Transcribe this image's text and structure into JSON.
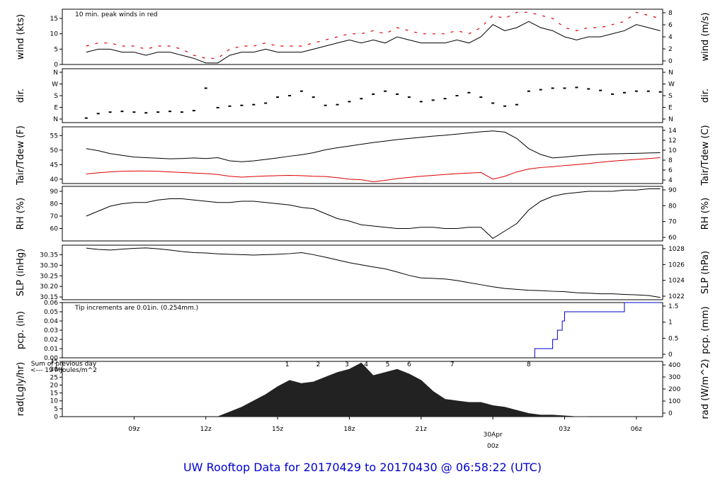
{
  "footer_title": "UW Rooftop Data for 20170429  to  20170430 @ 06:58:22  (UTC)",
  "colors": {
    "black": "#000000",
    "red": "#dd0000",
    "blue": "#0000cc",
    "purple": "#9900cc",
    "daylabel": "#dd0000",
    "fill": "#222222"
  },
  "chart_data": [
    {
      "id": "wind",
      "type": "line",
      "ylabel_left": "wind (kts)",
      "ylabel_right": "wind (m/s)",
      "annotation": "10 min. peak winds in red",
      "left_ticks": [
        0,
        5,
        10,
        15
      ],
      "right_ticks": [
        0,
        2,
        4,
        6,
        8
      ],
      "ylim": [
        0,
        18
      ],
      "series": [
        {
          "color": "#000000",
          "x": [
            7.0,
            7.5,
            8.0,
            8.5,
            9.0,
            9.5,
            10.0,
            10.5,
            11.0,
            11.5,
            12.0,
            12.5,
            13.0,
            13.5,
            14.0,
            14.5,
            15.0,
            15.5,
            16.0,
            16.5,
            17.0,
            17.5,
            18.0,
            18.5,
            19.0,
            19.5,
            20.0,
            20.5,
            21.0,
            21.5,
            22.0,
            22.5,
            23.0,
            23.5,
            24.0,
            24.5,
            25.0,
            25.5,
            26.0,
            26.5,
            27.0,
            27.5,
            28.0,
            28.5,
            29.0,
            29.5,
            30.0,
            30.5,
            31.0
          ],
          "y": [
            4,
            5,
            5,
            4,
            4,
            3,
            4,
            4,
            3,
            2,
            0.5,
            0.5,
            3,
            4,
            4,
            5,
            4,
            4,
            4,
            5,
            6,
            7,
            8,
            7,
            8,
            7,
            9,
            8,
            7,
            7,
            7,
            8,
            7,
            9,
            13,
            11,
            12,
            14,
            12,
            11,
            9,
            8,
            9,
            9,
            10,
            11,
            13,
            12,
            11
          ]
        },
        {
          "color": "#dd0000",
          "style": "dash",
          "x": [
            7.0,
            7.5,
            8.0,
            8.5,
            9.0,
            9.5,
            10.0,
            10.5,
            11.0,
            11.5,
            12.0,
            12.5,
            13.0,
            13.5,
            14.0,
            14.5,
            15.0,
            15.5,
            16.0,
            16.5,
            17.0,
            17.5,
            18.0,
            18.5,
            19.0,
            19.5,
            20.0,
            20.5,
            21.0,
            21.5,
            22.0,
            22.5,
            23.0,
            23.5,
            24.0,
            24.5,
            25.0,
            25.5,
            26.0,
            26.5,
            27.0,
            27.5,
            28.0,
            28.5,
            29.0,
            29.5,
            30.0,
            30.5,
            31.0
          ],
          "y": [
            6,
            7,
            7,
            6,
            6,
            5,
            6,
            6,
            5,
            3,
            2,
            2,
            5,
            6,
            6,
            7,
            6,
            6,
            6,
            7,
            8,
            9,
            10,
            10,
            11,
            10,
            12,
            11,
            10,
            10,
            10,
            11,
            10,
            12,
            16,
            15,
            17,
            17,
            16,
            15,
            12,
            11,
            12,
            12,
            13,
            14,
            17,
            16,
            15
          ]
        }
      ]
    },
    {
      "id": "dir",
      "type": "scatter",
      "ylabel_left": "dir.",
      "ylabel_right": "dir.",
      "left_ticks": [
        "N",
        "E",
        "S",
        "W",
        "N"
      ],
      "right_ticks": [
        "N",
        "E",
        "S",
        "W",
        "N"
      ],
      "ylim": [
        0,
        360
      ],
      "series": [
        {
          "color": "#000000",
          "x": [
            7.0,
            7.5,
            8.0,
            8.5,
            9.0,
            9.5,
            10.0,
            10.5,
            11.0,
            11.5,
            12.0,
            12.5,
            13.0,
            13.5,
            14.0,
            14.5,
            15.0,
            15.5,
            16.0,
            16.5,
            17.0,
            17.5,
            18.0,
            18.5,
            19.0,
            19.5,
            20.0,
            20.5,
            21.0,
            21.5,
            22.0,
            22.5,
            23.0,
            23.5,
            24.0,
            24.5,
            25.0,
            25.5,
            26.0,
            26.5,
            27.0,
            27.5,
            28.0,
            28.5,
            29.0,
            29.5,
            30.0,
            30.5,
            31.0
          ],
          "y": [
            30,
            60,
            70,
            75,
            70,
            65,
            70,
            75,
            70,
            80,
            230,
            100,
            110,
            115,
            120,
            130,
            170,
            180,
            210,
            170,
            115,
            120,
            140,
            160,
            190,
            210,
            190,
            170,
            140,
            150,
            160,
            180,
            200,
            170,
            130,
            110,
            120,
            210,
            220,
            230,
            230,
            235,
            225,
            215,
            190,
            200,
            210,
            210,
            205
          ]
        }
      ]
    },
    {
      "id": "temp",
      "type": "line",
      "ylabel_left": "Tair/Tdew (F)",
      "ylabel_right": "Tair/Tdew (C)",
      "left_ticks": [
        40,
        45,
        50,
        55
      ],
      "right_ticks": [
        4,
        6,
        8,
        10,
        12,
        14
      ],
      "ylim": [
        38.5,
        58
      ],
      "series": [
        {
          "color": "#000000",
          "x": [
            7.0,
            7.5,
            8.0,
            8.5,
            9.0,
            9.5,
            10.0,
            10.5,
            11.0,
            11.5,
            12.0,
            12.5,
            13.0,
            13.5,
            14.0,
            14.5,
            15.0,
            15.5,
            16.0,
            16.5,
            17.0,
            17.5,
            18.0,
            18.5,
            19.0,
            19.5,
            20.0,
            20.5,
            21.0,
            21.5,
            22.0,
            22.5,
            23.0,
            23.5,
            24.0,
            24.5,
            25.0,
            25.5,
            26.0,
            26.5,
            27.0,
            27.5,
            28.0,
            28.5,
            29.0,
            29.5,
            30.0,
            30.5,
            31.0
          ],
          "y": [
            50.5,
            49.8,
            48.8,
            48.2,
            47.6,
            47.4,
            47.2,
            47.0,
            47.1,
            47.3,
            47.1,
            47.4,
            46.3,
            46.0,
            46.3,
            46.8,
            47.3,
            47.9,
            48.4,
            49.1,
            50.1,
            50.8,
            51.4,
            52.0,
            52.6,
            53.1,
            53.6,
            54.0,
            54.4,
            54.8,
            55.1,
            55.5,
            55.9,
            56.3,
            56.6,
            56.2,
            54.0,
            50.5,
            48.5,
            47.3,
            47.6,
            48.0,
            48.3,
            48.6,
            48.7,
            48.8,
            48.9,
            49.0,
            49.1
          ]
        },
        {
          "color": "#dd0000",
          "x": [
            7.0,
            7.5,
            8.0,
            8.5,
            9.0,
            9.5,
            10.0,
            10.5,
            11.0,
            11.5,
            12.0,
            12.5,
            13.0,
            13.5,
            14.0,
            14.5,
            15.0,
            15.5,
            16.0,
            16.5,
            17.0,
            17.5,
            18.0,
            18.5,
            19.0,
            19.5,
            20.0,
            20.5,
            21.0,
            21.5,
            22.0,
            22.5,
            23.0,
            23.5,
            24.0,
            24.5,
            25.0,
            25.5,
            26.0,
            26.5,
            27.0,
            27.5,
            28.0,
            28.5,
            29.0,
            29.5,
            30.0,
            30.5,
            31.0
          ],
          "y": [
            41.8,
            42.2,
            42.5,
            42.7,
            42.8,
            42.8,
            42.7,
            42.5,
            42.3,
            42.1,
            41.9,
            41.6,
            41.0,
            40.7,
            40.9,
            41.1,
            41.2,
            41.3,
            41.2,
            41.0,
            40.9,
            40.5,
            40.0,
            39.8,
            39.1,
            39.6,
            40.2,
            40.6,
            41.0,
            41.3,
            41.6,
            41.9,
            42.1,
            42.3,
            40.0,
            41.0,
            42.5,
            43.5,
            44.0,
            44.3,
            44.7,
            45.0,
            45.4,
            45.8,
            46.2,
            46.5,
            46.8,
            47.1,
            47.4
          ]
        }
      ]
    },
    {
      "id": "rh",
      "type": "line",
      "ylabel_left": "RH (%)",
      "ylabel_right": "RH (%)",
      "left_ticks": [
        60,
        70,
        80,
        90
      ],
      "right_ticks": [
        60,
        70,
        80,
        90
      ],
      "ylim": [
        50,
        94
      ],
      "series": [
        {
          "color": "#000000",
          "x": [
            7.0,
            7.5,
            8.0,
            8.5,
            9.0,
            9.5,
            10.0,
            10.5,
            11.0,
            11.5,
            12.0,
            12.5,
            13.0,
            13.5,
            14.0,
            14.5,
            15.0,
            15.5,
            16.0,
            16.5,
            17.0,
            17.5,
            18.0,
            18.5,
            19.0,
            19.5,
            20.0,
            20.5,
            21.0,
            21.5,
            22.0,
            22.5,
            23.0,
            23.5,
            24.0,
            24.5,
            25.0,
            25.5,
            26.0,
            26.5,
            27.0,
            27.5,
            28.0,
            28.5,
            29.0,
            29.5,
            30.0,
            30.5,
            31.0
          ],
          "y": [
            70,
            74,
            78,
            80,
            81,
            81,
            83,
            84,
            84,
            83,
            82,
            81,
            81,
            82,
            82,
            81,
            80,
            79,
            77,
            76,
            72,
            68,
            66,
            63,
            62,
            61,
            60,
            60,
            61,
            61,
            60,
            60,
            61,
            61,
            52,
            58,
            64,
            75,
            82,
            86,
            88,
            89,
            90,
            90,
            90,
            91,
            91,
            92,
            92
          ]
        }
      ]
    },
    {
      "id": "slp",
      "type": "line",
      "ylabel_left": "SLP (inHg)",
      "ylabel_right": "SLP (hPa)",
      "left_ticks": [
        "30.15",
        "30.20",
        "30.25",
        "30.30",
        "30.35"
      ],
      "right_ticks": [
        1022,
        1024,
        1026,
        1028
      ],
      "ylim": [
        30.137,
        30.395
      ],
      "series": [
        {
          "color": "#000000",
          "x": [
            7.0,
            7.5,
            8.0,
            8.5,
            9.0,
            9.5,
            10.0,
            10.5,
            11.0,
            11.5,
            12.0,
            12.5,
            13.0,
            13.5,
            14.0,
            14.5,
            15.0,
            15.5,
            16.0,
            16.5,
            17.0,
            17.5,
            18.0,
            18.5,
            19.0,
            19.5,
            20.0,
            20.5,
            21.0,
            21.5,
            22.0,
            22.5,
            23.0,
            23.5,
            24.0,
            24.5,
            25.0,
            25.5,
            26.0,
            26.5,
            27.0,
            27.5,
            28.0,
            28.5,
            29.0,
            29.5,
            30.0,
            30.5,
            31.0
          ],
          "y": [
            30.381,
            30.375,
            30.372,
            30.376,
            30.38,
            30.382,
            30.378,
            30.372,
            30.365,
            30.36,
            30.358,
            30.354,
            30.352,
            30.35,
            30.348,
            30.35,
            30.352,
            30.355,
            30.36,
            30.35,
            30.338,
            30.325,
            30.312,
            30.302,
            30.292,
            30.283,
            30.268,
            30.252,
            30.24,
            30.238,
            30.235,
            30.228,
            30.218,
            30.208,
            30.198,
            30.19,
            30.186,
            30.182,
            30.18,
            30.177,
            30.175,
            30.17,
            30.168,
            30.165,
            30.165,
            30.162,
            30.16,
            30.157,
            30.148
          ]
        }
      ]
    },
    {
      "id": "pcp",
      "type": "line",
      "ylabel_left": "pcp. (in)",
      "ylabel_right": "pcp. (mm)",
      "annotation": "Tip increments are 0.01in. (0.254mm.)",
      "left_ticks": [
        "0.00",
        "0.01",
        "0.02",
        "0.03",
        "0.04",
        "0.05",
        "0.06"
      ],
      "right_ticks": [
        "0",
        "0.5",
        "1",
        "1.5"
      ],
      "ylim": [
        0,
        0.06
      ],
      "series": [
        {
          "color": "#0000cc",
          "step": true,
          "x": [
            25.75,
            26.5,
            26.7,
            26.9,
            27.0,
            27.15,
            27.3,
            29.5,
            31.0
          ],
          "y": [
            0.01,
            0.02,
            0.03,
            0.04,
            0.05,
            0.05,
            0.05,
            0.06,
            0.06
          ]
        },
        {
          "color": "#000000",
          "x": [
            7.0,
            25.75
          ],
          "y": [
            0,
            0
          ]
        }
      ]
    },
    {
      "id": "rad",
      "type": "area",
      "ylabel_left": "rad(Lgly/hr)",
      "ylabel_right": "rad (W/m^2)",
      "annotation_lines": [
        "Sum of previous day",
        "<--- 19 MJoules/m^2"
      ],
      "markers": [
        "1",
        "2",
        "3",
        "4",
        "5",
        "6",
        "7",
        "8"
      ],
      "marker_x": [
        15.4,
        16.7,
        17.9,
        18.7,
        19.6,
        20.5,
        22.3,
        25.5
      ],
      "left_ticks": [
        0,
        5,
        10,
        15,
        20,
        25,
        30,
        35
      ],
      "right_ticks": [
        0,
        100,
        200,
        300,
        400
      ],
      "ylim": [
        0,
        35
      ],
      "series": [
        {
          "color": "#222222",
          "x": [
            12.5,
            13.0,
            13.5,
            14.0,
            14.5,
            15.0,
            15.5,
            16.0,
            16.5,
            17.0,
            17.5,
            18.0,
            18.5,
            19.0,
            19.5,
            20.0,
            20.5,
            21.0,
            21.5,
            22.0,
            22.5,
            23.0,
            23.5,
            24.0,
            24.5,
            25.0,
            25.5,
            26.0,
            26.5,
            27.0,
            27.5,
            28.0
          ],
          "y": [
            0,
            3,
            6,
            10,
            14,
            19,
            23,
            21,
            22,
            25,
            28,
            30,
            34,
            26,
            28,
            30,
            27,
            23,
            16,
            11,
            10,
            9,
            9,
            7,
            6,
            4,
            2,
            1,
            1,
            0.5,
            0,
            0
          ]
        }
      ]
    }
  ],
  "x_axis": {
    "ticks": [
      "09z",
      "12z",
      "15z",
      "18z",
      "21z",
      "03z",
      "06z"
    ],
    "tick_x": [
      9,
      12,
      15,
      18,
      21,
      27,
      30
    ],
    "day_label": "30Apr",
    "day_sublabel": "00z",
    "xlim": [
      6.0,
      31.1
    ]
  }
}
